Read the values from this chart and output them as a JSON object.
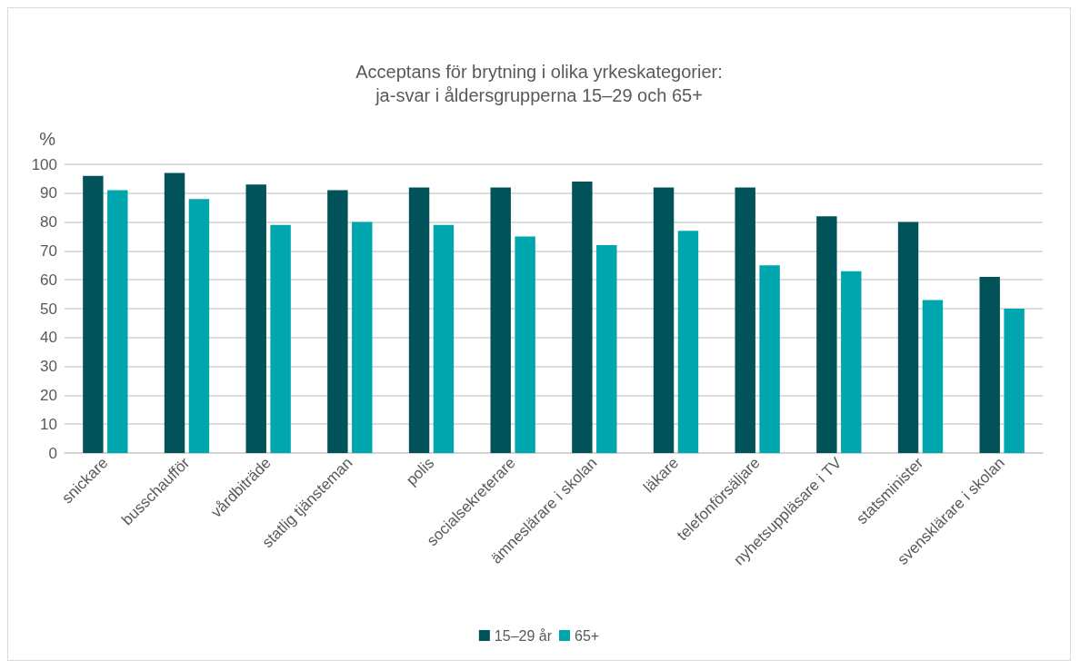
{
  "chart_data": {
    "type": "bar",
    "title": "Acceptans för brytning i olika yrkeskategorier:\nja-svar i åldersgrupperna 15–29 och 65+",
    "ylabel": "%",
    "categories": [
      "snickare",
      "busschaufför",
      "vårdbiträde",
      "statlig tjänsteman",
      "polis",
      "socialsekreterare",
      "ämneslärare i skolan",
      "läkare",
      "telefonförsäljare",
      "nyhetsuppläsare i TV",
      "statsminister",
      "svensklärare i skolan"
    ],
    "series": [
      {
        "name": "15–29 år",
        "color": "#02525a",
        "values": [
          96,
          97,
          93,
          91,
          92,
          92,
          94,
          92,
          92,
          82,
          80,
          61
        ]
      },
      {
        "name": "65+",
        "color": "#00a6ad",
        "values": [
          91,
          88,
          79,
          80,
          79,
          75,
          72,
          77,
          65,
          63,
          53,
          50
        ]
      }
    ],
    "ylim": [
      0,
      100
    ],
    "yticks": [
      0,
      10,
      20,
      30,
      40,
      50,
      60,
      70,
      80,
      90,
      100
    ],
    "grid": "y",
    "legend": "bottom"
  }
}
